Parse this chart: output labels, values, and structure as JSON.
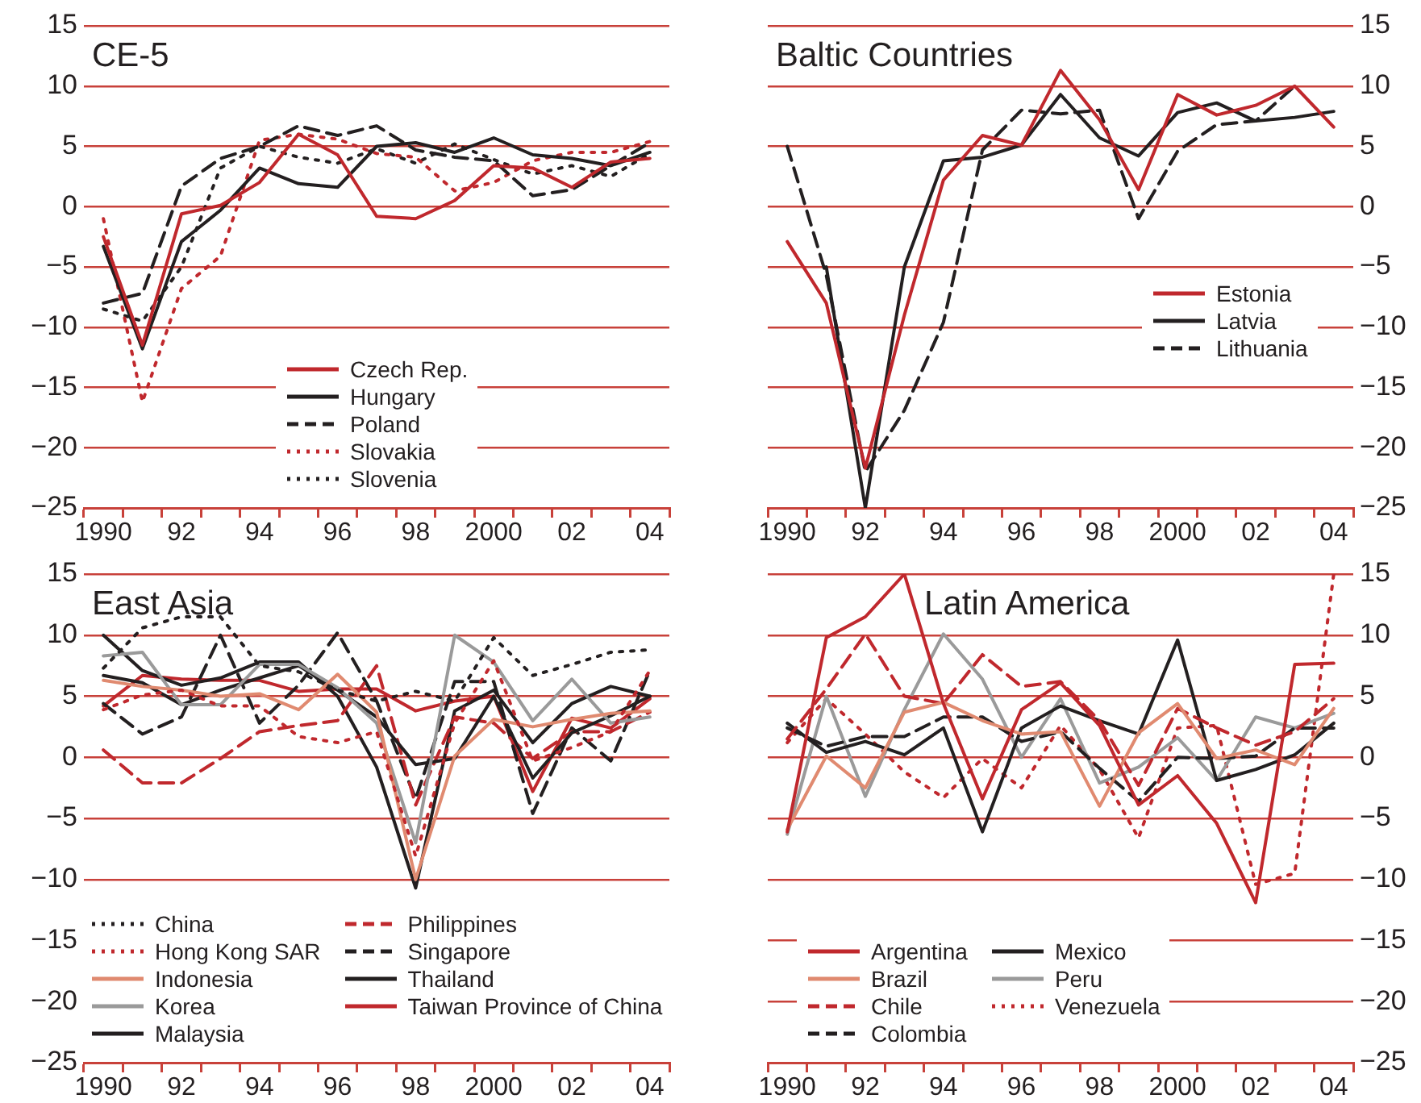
{
  "chart_data": [
    {
      "type": "line",
      "title": "CE-5",
      "categories": [
        "1990",
        null,
        "92",
        null,
        "94",
        null,
        "96",
        null,
        "98",
        null,
        "2000",
        null,
        "02",
        null,
        "04"
      ],
      "ylim": [
        -25,
        15
      ],
      "yticks": [
        {
          "value": -25,
          "label": "−25"
        },
        {
          "value": -20,
          "label": "−20"
        },
        {
          "value": -15,
          "label": "−15"
        },
        {
          "value": -10,
          "label": "−10"
        },
        {
          "value": -5,
          "label": "−5"
        },
        0,
        5,
        10,
        15
      ],
      "grid": "y",
      "legend": "bottom",
      "series": [
        {
          "name": "Czech Rep.",
          "color": "#c0282d",
          "line_style": "solid",
          "values": [
            -2.5,
            -11.5,
            -0.6,
            0.1,
            2.0,
            6.0,
            4.3,
            -0.8,
            -1.0,
            0.5,
            3.4,
            3.2,
            1.6,
            3.7,
            4.0
          ]
        },
        {
          "name": "Hungary",
          "color": "#231f20",
          "line_style": "solid",
          "values": [
            -3.3,
            -11.8,
            -2.9,
            -0.3,
            3.2,
            1.9,
            1.6,
            5.0,
            5.3,
            4.5,
            5.7,
            4.3,
            4.0,
            3.4,
            4.5
          ]
        },
        {
          "name": "Poland",
          "color": "#231f20",
          "line_style": "dashed",
          "values": [
            -8.0,
            -7.2,
            1.7,
            4.0,
            5.0,
            6.7,
            5.9,
            6.7,
            4.7,
            4.1,
            3.8,
            0.9,
            1.4,
            3.4,
            5.3
          ]
        },
        {
          "name": "Slovakia",
          "color": "#c0282d",
          "line_style": "dotted",
          "values": [
            -1.0,
            -16.2,
            -6.8,
            -4.1,
            5.5,
            6.0,
            5.6,
            4.4,
            4.1,
            1.3,
            2.0,
            3.8,
            4.5,
            4.5,
            5.4
          ]
        },
        {
          "name": "Slovenia",
          "color": "#231f20",
          "line_style": "dotted",
          "values": [
            -8.5,
            -9.5,
            -5.0,
            3.2,
            5.0,
            4.1,
            3.6,
            4.8,
            3.6,
            5.2,
            3.9,
            2.7,
            3.4,
            2.5,
            4.4
          ]
        }
      ]
    },
    {
      "type": "line",
      "title": "Baltic Countries",
      "categories": [
        "1990",
        null,
        "92",
        null,
        "94",
        null,
        "96",
        null,
        "98",
        null,
        "2000",
        null,
        "02",
        null,
        "04"
      ],
      "ylim": [
        -25,
        15
      ],
      "yticks": [
        {
          "value": -25,
          "label": "−25"
        },
        {
          "value": -20,
          "label": "−20"
        },
        {
          "value": -15,
          "label": "−15"
        },
        {
          "value": -10,
          "label": "−10"
        },
        {
          "value": -5,
          "label": "−5"
        },
        0,
        5,
        10,
        15
      ],
      "grid": "y",
      "legend": "right",
      "series": [
        {
          "name": "Estonia",
          "color": "#c0282d",
          "line_style": "solid",
          "values": [
            -2.9,
            -8.0,
            -21.7,
            -9.0,
            2.2,
            5.9,
            5.1,
            11.3,
            7.2,
            1.4,
            9.3,
            7.6,
            8.4,
            10.0,
            6.6
          ]
        },
        {
          "name": "Latvia",
          "color": "#231f20",
          "line_style": "solid",
          "values": [
            null,
            -5.0,
            -25,
            -5.0,
            3.8,
            4.1,
            5.1,
            9.3,
            5.7,
            4.2,
            7.8,
            8.6,
            7.1,
            7.4,
            7.9
          ]
        },
        {
          "name": "Lithuania",
          "color": "#231f20",
          "line_style": "dashed",
          "values": [
            5.0,
            -5.7,
            -22.0,
            -16.9,
            -9.6,
            4.7,
            8.0,
            7.7,
            8.0,
            -1.0,
            4.6,
            6.8,
            7.1,
            10.0,
            null
          ]
        }
      ]
    },
    {
      "type": "line",
      "title": "East Asia",
      "categories": [
        "1990",
        null,
        "92",
        null,
        "94",
        null,
        "96",
        null,
        "98",
        null,
        "2000",
        null,
        "02",
        null,
        "04"
      ],
      "ylim": [
        -25,
        15
      ],
      "yticks": [
        {
          "value": -25,
          "label": "−25"
        },
        {
          "value": -20,
          "label": "−20"
        },
        {
          "value": -15,
          "label": "−15"
        },
        {
          "value": -10,
          "label": "−10"
        },
        {
          "value": -5,
          "label": "−5"
        },
        0,
        5,
        10,
        15
      ],
      "grid": "y",
      "legend": "bottom",
      "series": [
        {
          "name": "China",
          "color": "#231f20",
          "line_style": "dotted",
          "values": [
            7.3,
            10.6,
            11.5,
            11.5,
            7.5,
            7.0,
            5.5,
            4.6,
            5.4,
            4.6,
            9.8,
            6.7,
            7.6,
            8.6,
            8.8
          ]
        },
        {
          "name": "Hong Kong SAR",
          "color": "#c0282d",
          "line_style": "dotted",
          "values": [
            3.9,
            5.1,
            5.5,
            4.2,
            4.2,
            1.7,
            1.2,
            2.1,
            -8.1,
            2.8,
            7.9,
            -0.3,
            0.8,
            2.1,
            7.1
          ]
        },
        {
          "name": "Indonesia",
          "color": "#e08a70",
          "line_style": "solid",
          "values": [
            6.3,
            5.8,
            5.5,
            5.0,
            5.2,
            3.9,
            6.8,
            3.7,
            -10.0,
            0.1,
            3.1,
            2.5,
            3.1,
            3.6,
            3.8
          ]
        },
        {
          "name": "Korea",
          "color": "#9a9a9a",
          "line_style": "solid",
          "values": [
            8.3,
            8.6,
            4.3,
            4.3,
            7.6,
            7.6,
            5.7,
            2.8,
            -7.0,
            10.0,
            7.8,
            3.0,
            6.4,
            2.8,
            3.3
          ]
        },
        {
          "name": "Malaysia",
          "color": "#231f20",
          "line_style": "solid",
          "values": [
            6.7,
            6.1,
            4.3,
            5.5,
            6.5,
            7.5,
            5.5,
            3.3,
            -0.6,
            -0.1,
            5.0,
            -1.7,
            2.0,
            3.4,
            5.0
          ]
        },
        {
          "name": "Philippines",
          "color": "#c0282d",
          "line_style": "dashed",
          "values": [
            0.6,
            -2.1,
            -2.1,
            -0.1,
            2.1,
            2.6,
            3.0,
            7.5,
            -3.9,
            3.3,
            2.8,
            -0.1,
            2.1,
            2.1,
            3.7
          ]
        },
        {
          "name": "Singapore",
          "color": "#231f20",
          "line_style": "dashed",
          "values": [
            4.4,
            1.9,
            3.3,
            10.0,
            2.8,
            5.9,
            10.2,
            4.6,
            -3.4,
            6.2,
            6.2,
            -4.6,
            2.4,
            -0.3,
            7.1
          ]
        },
        {
          "name": "Thailand",
          "color": "#231f20",
          "line_style": "solid",
          "values": [
            10.0,
            7.1,
            5.9,
            6.5,
            7.8,
            7.8,
            5.0,
            -0.8,
            -10.7,
            3.8,
            5.5,
            1.2,
            4.4,
            5.8,
            5.0
          ]
        },
        {
          "name": "Taiwan Province of China",
          "color": "#c0282d",
          "line_style": "solid",
          "values": [
            4.2,
            6.7,
            6.4,
            6.3,
            6.3,
            5.4,
            5.6,
            5.6,
            3.8,
            4.6,
            5.0,
            -2.8,
            3.2,
            2.4,
            4.8
          ]
        }
      ]
    },
    {
      "type": "line",
      "title": "Latin America",
      "categories": [
        "1990",
        null,
        "92",
        null,
        "94",
        null,
        "96",
        null,
        "98",
        null,
        "2000",
        null,
        "02",
        null,
        "04"
      ],
      "ylim": [
        -25,
        15
      ],
      "yticks": [
        {
          "value": -25,
          "label": "−25"
        },
        {
          "value": -20,
          "label": "−20"
        },
        {
          "value": -15,
          "label": "−15"
        },
        {
          "value": -10,
          "label": "−10"
        },
        {
          "value": -5,
          "label": "−5"
        },
        0,
        5,
        10,
        15
      ],
      "grid": "y",
      "legend": "bottom left",
      "series": [
        {
          "name": "Argentina",
          "color": "#c0282d",
          "line_style": "solid",
          "values": [
            -6.1,
            9.8,
            11.5,
            15,
            4.4,
            -3.4,
            3.9,
            6.1,
            2.6,
            -3.9,
            -1.5,
            -5.4,
            -11.9,
            7.6,
            7.7
          ]
        },
        {
          "name": "Brazil",
          "color": "#e08a70",
          "line_style": "solid",
          "values": [
            -5.9,
            0.1,
            -2.5,
            3.7,
            4.5,
            3.0,
            1.9,
            2.1,
            -4.0,
            2.0,
            4.4,
            -0.1,
            0.6,
            -0.6,
            4.0
          ]
        },
        {
          "name": "Chile",
          "color": "#c0282d",
          "line_style": "dashed",
          "values": [
            1.5,
            5.6,
            10.1,
            5.0,
            4.4,
            8.4,
            5.8,
            6.2,
            3.0,
            -2.3,
            4.0,
            2.4,
            1.0,
            2.1,
            4.8
          ]
        },
        {
          "name": "Colombia",
          "color": "#231f20",
          "line_style": "dashed",
          "values": [
            2.4,
            0.9,
            1.7,
            1.7,
            3.3,
            3.3,
            1.3,
            2.1,
            -0.9,
            -3.6,
            0.0,
            -0.1,
            0.1,
            2.4,
            2.4
          ]
        },
        {
          "name": "Mexico",
          "color": "#231f20",
          "line_style": "solid",
          "values": [
            2.8,
            0.4,
            1.3,
            0.2,
            2.4,
            -6.1,
            2.4,
            4.2,
            3.0,
            1.9,
            9.6,
            -1.9,
            -1.0,
            0.2,
            2.8
          ]
        },
        {
          "name": "Peru",
          "color": "#9a9a9a",
          "line_style": "solid",
          "values": [
            -6.3,
            5.0,
            -3.2,
            3.9,
            10.1,
            6.4,
            0.0,
            4.8,
            -2.1,
            -0.8,
            1.6,
            -1.9,
            3.3,
            2.4,
            3.6
          ]
        },
        {
          "name": "Venezuela",
          "color": "#c0282d",
          "line_style": "dotted",
          "values": [
            1.2,
            4.8,
            1.9,
            -1.2,
            -3.3,
            -0.1,
            -2.5,
            2.6,
            -1.0,
            -6.6,
            2.4,
            2.6,
            -10.4,
            -9.5,
            15
          ]
        }
      ]
    }
  ]
}
